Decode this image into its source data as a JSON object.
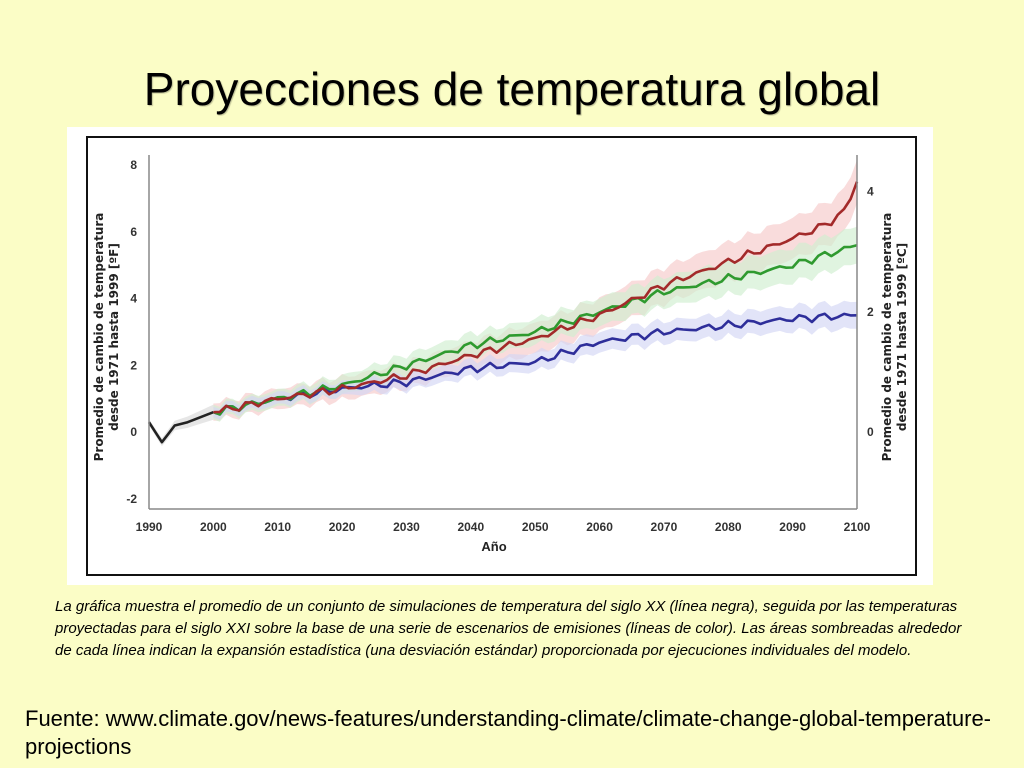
{
  "slide": {
    "title": "Proyecciones de temperatura global",
    "caption": "La gráfica muestra el promedio de un conjunto de simulaciones de temperatura del siglo XX (línea negra), seguida por las temperaturas proyectadas para el siglo XXI sobre la base de una serie de escenarios de emisiones (líneas de color). Las áreas sombreadas alrededor de cada línea indican la expansión estadística (una desviación estándar) proporcionada por ejecuciones individuales del modelo.",
    "source": "Fuente: www.climate.gov/news-features/understanding-climate/climate-change-global-temperature-projections"
  },
  "chart_data": {
    "type": "line",
    "title": "",
    "xlabel": "Año",
    "ylabel_left": "Promedio de cambio de temperatura desde 1971 hasta 1999 [ºF]",
    "ylabel_right": "Promedio de cambio de temperatura desde 1971 hasta 1999 [ºC]",
    "xlim": [
      1990,
      2100
    ],
    "ylim_left": [
      -2,
      8
    ],
    "ylim_right": [
      -1.11,
      4.44
    ],
    "x_ticks": [
      "1990",
      "2000",
      "2010",
      "2020",
      "2030",
      "2040",
      "2050",
      "2060",
      "2070",
      "2080",
      "2090",
      "2100"
    ],
    "y_ticks_left": [
      "8",
      "6",
      "4",
      "2",
      "0",
      "-2"
    ],
    "y_ticks_right": [
      "4",
      "2",
      "0"
    ],
    "grid": false,
    "colors": {
      "historical": "#222222",
      "high": "#a32a2a",
      "mid": "#2f9a2f",
      "low": "#2e2e9a",
      "high_band": "#f6c9c9",
      "mid_band": "#cfeecf",
      "low_band": "#d3d6f5",
      "hist_band": "#d9d9d9"
    },
    "series": [
      {
        "key": "historical",
        "x": [
          1990,
          1992,
          1994,
          1996,
          1998,
          2000
        ],
        "values": [
          0.3,
          -0.3,
          0.2,
          0.3,
          0.45,
          0.6
        ],
        "spread": 0.45
      },
      {
        "key": "high",
        "x": [
          2000,
          2010,
          2020,
          2030,
          2040,
          2050,
          2060,
          2070,
          2080,
          2090,
          2095,
          2098,
          2100
        ],
        "values": [
          0.6,
          1.0,
          1.3,
          1.7,
          2.3,
          2.8,
          3.5,
          4.4,
          5.1,
          5.8,
          6.2,
          6.6,
          7.5
        ],
        "spread": 1.3
      },
      {
        "key": "mid",
        "x": [
          2000,
          2010,
          2020,
          2030,
          2040,
          2050,
          2060,
          2070,
          2080,
          2090,
          2100
        ],
        "values": [
          0.6,
          1.0,
          1.4,
          2.0,
          2.6,
          3.0,
          3.6,
          4.2,
          4.6,
          5.0,
          5.6
        ],
        "spread": 1.1
      },
      {
        "key": "low",
        "x": [
          2000,
          2010,
          2020,
          2030,
          2040,
          2050,
          2060,
          2070,
          2080,
          2090,
          2100
        ],
        "values": [
          0.6,
          1.0,
          1.3,
          1.5,
          1.9,
          2.1,
          2.7,
          3.0,
          3.2,
          3.4,
          3.5
        ],
        "spread": 0.8
      }
    ]
  }
}
